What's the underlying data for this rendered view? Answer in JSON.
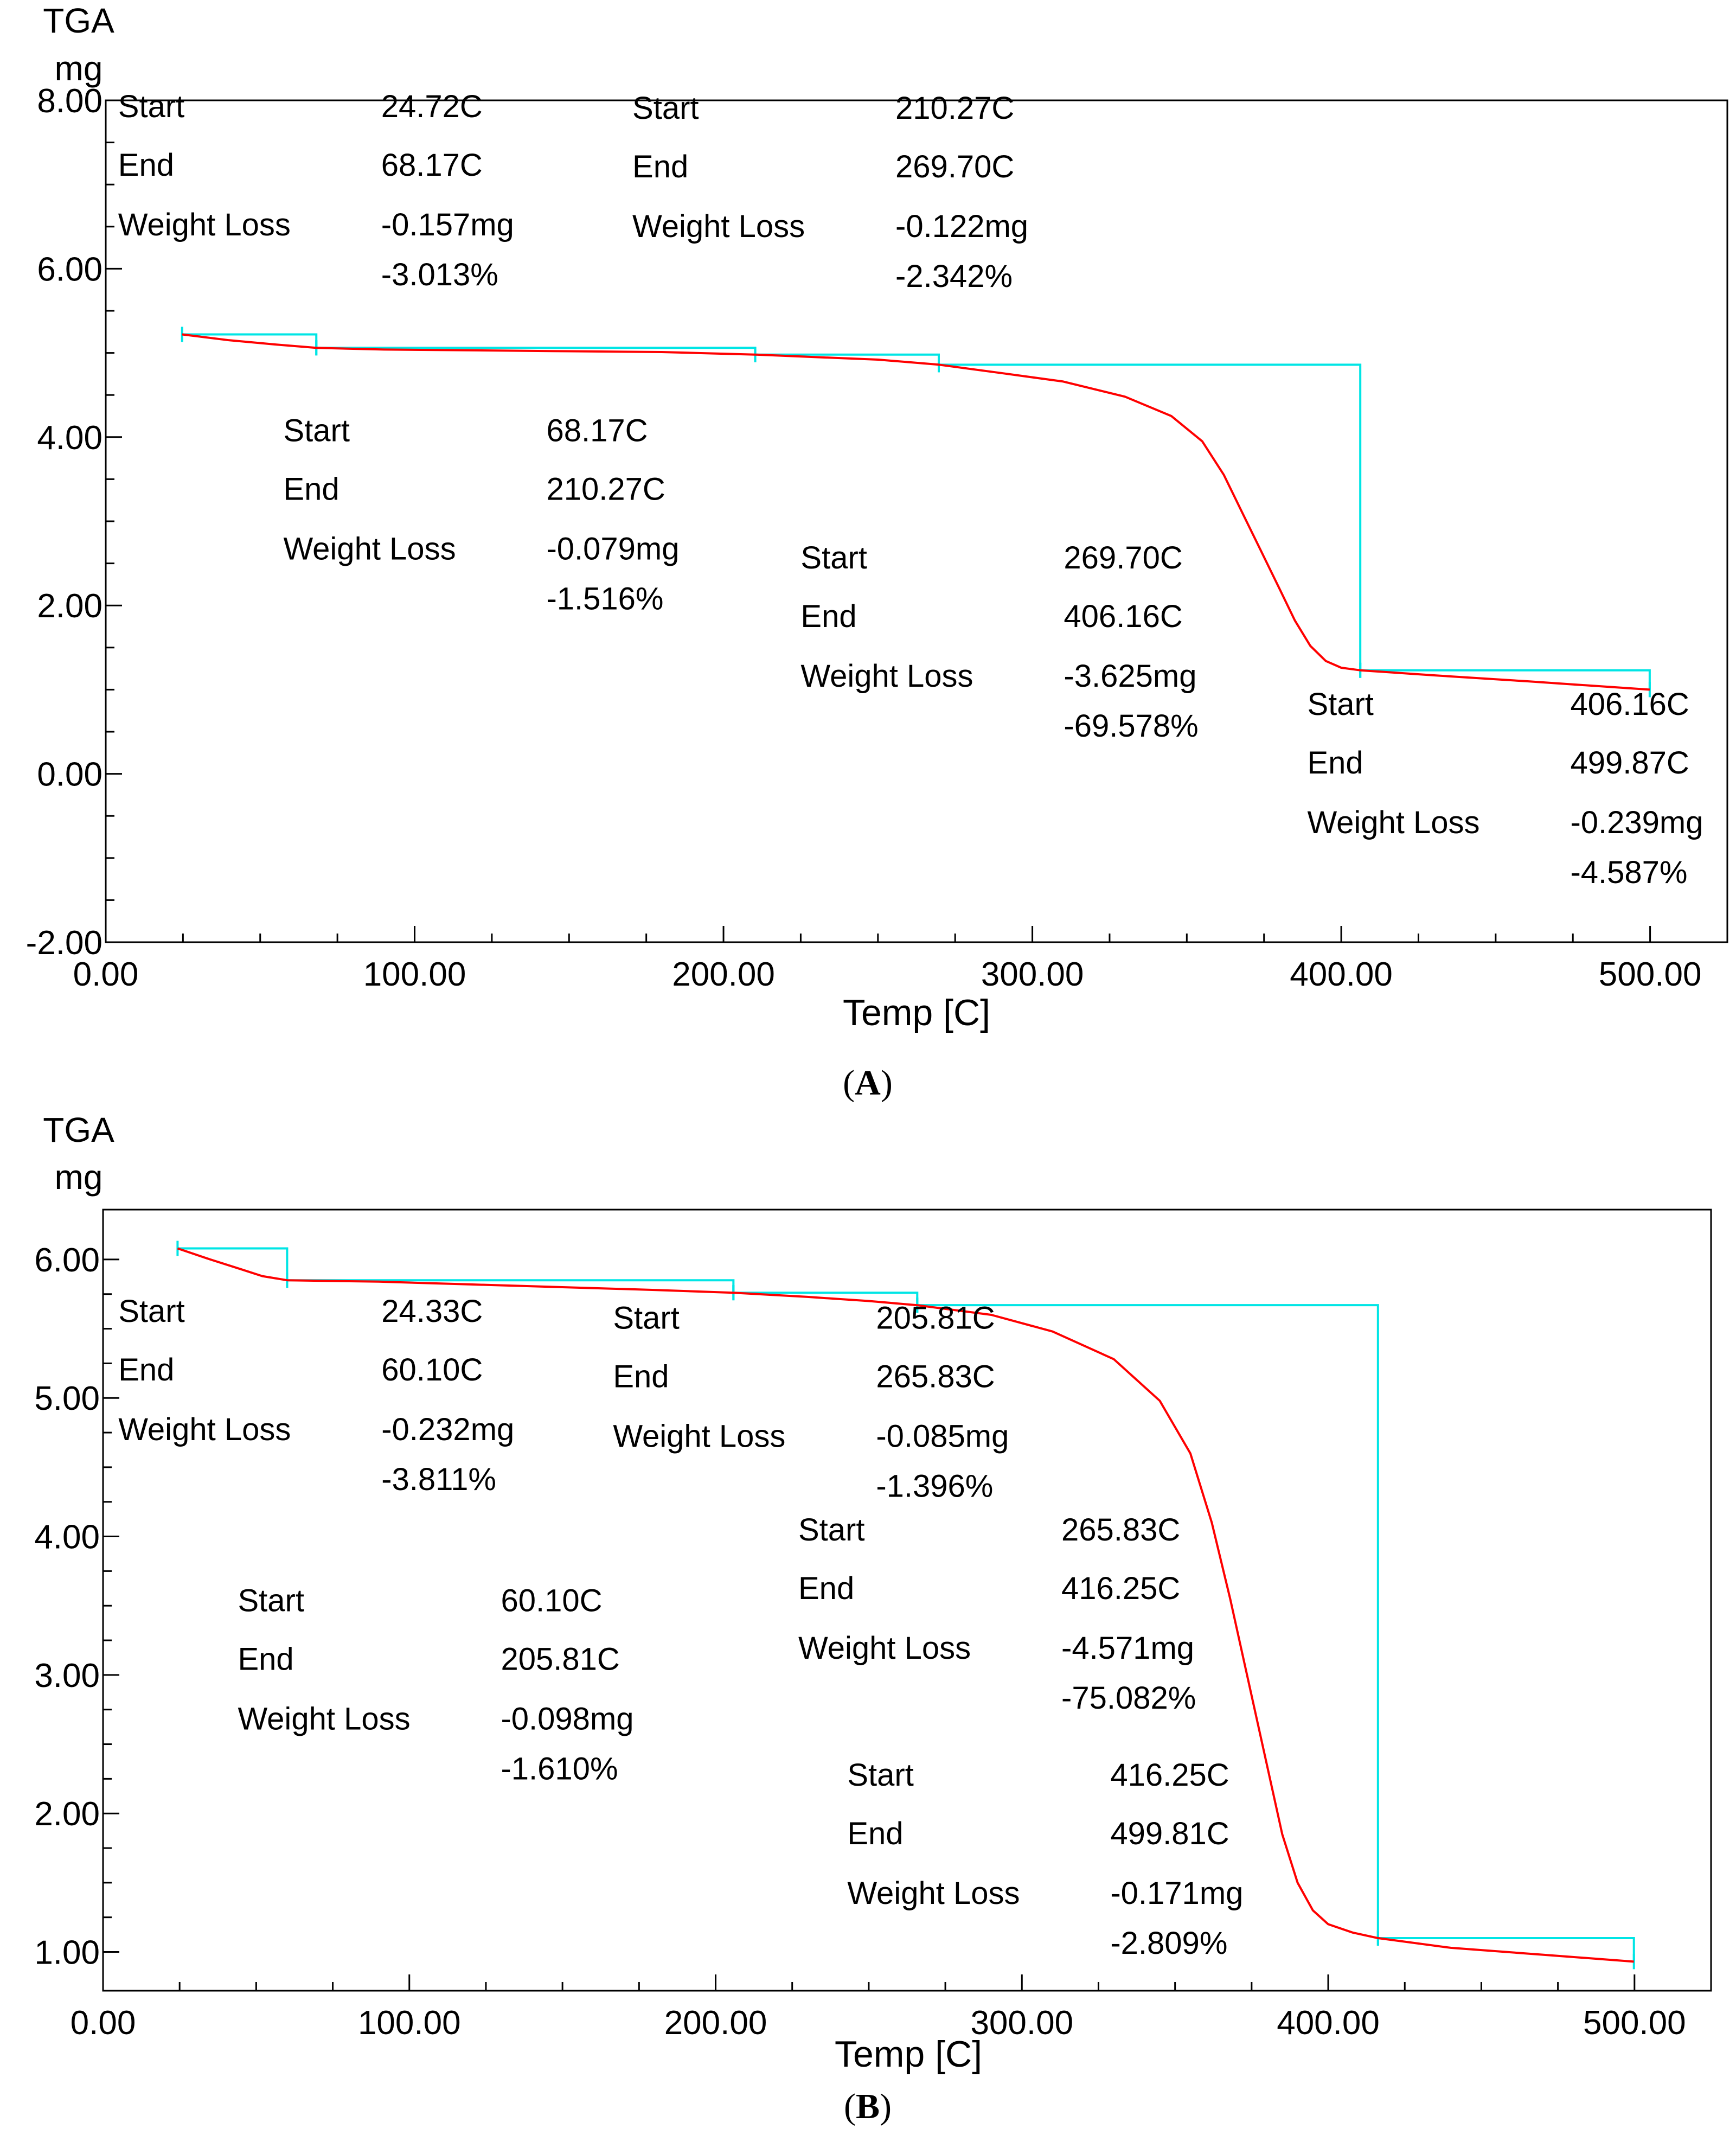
{
  "chart_data": [
    {
      "type": "line",
      "panel_label": "A",
      "ylabel_line1": "TGA",
      "ylabel_line2": "mg",
      "xlabel": "Temp  [C]",
      "xlim": [
        0,
        525
      ],
      "ylim": [
        -2,
        8
      ],
      "x_ticks": [
        0,
        100,
        200,
        300,
        400,
        500
      ],
      "x_tick_labels": [
        "0.00",
        "100.00",
        "200.00",
        "300.00",
        "400.00",
        "500.00"
      ],
      "y_ticks": [
        -2,
        0,
        2,
        4,
        6,
        8
      ],
      "y_tick_labels": [
        "-2.00",
        "0.00",
        "2.00",
        "4.00",
        "6.00",
        "8.00"
      ],
      "series": [
        {
          "name": "TGA",
          "color": "#ff0000",
          "x": [
            24.72,
            40,
            55,
            68.17,
            90,
            120,
            150,
            180,
            210.27,
            230,
            250,
            269.7,
            290,
            310,
            330,
            345,
            355,
            362,
            368,
            374,
            380,
            385,
            390,
            395,
            400,
            406.16,
            430,
            460,
            499.87
          ],
          "y": [
            5.22,
            5.15,
            5.1,
            5.06,
            5.04,
            5.03,
            5.02,
            5.01,
            4.98,
            4.95,
            4.92,
            4.86,
            4.76,
            4.66,
            4.48,
            4.25,
            3.95,
            3.55,
            3.1,
            2.65,
            2.2,
            1.82,
            1.52,
            1.34,
            1.26,
            1.23,
            1.17,
            1.1,
            1.0
          ]
        }
      ],
      "steps_color": "#00e5e5",
      "steps": [
        {
          "start": 24.72,
          "end": 68.17,
          "w_start": 5.22,
          "w_end": 5.06
        },
        {
          "start": 68.17,
          "end": 210.27,
          "w_start": 5.06,
          "w_end": 4.98
        },
        {
          "start": 210.27,
          "end": 269.7,
          "w_start": 4.98,
          "w_end": 4.86
        },
        {
          "start": 269.7,
          "end": 406.16,
          "w_start": 4.86,
          "w_end": 1.23
        },
        {
          "start": 406.16,
          "end": 499.87,
          "w_start": 1.23,
          "w_end": 1.0
        }
      ],
      "annotations": [
        {
          "start": "24.72C",
          "end": "68.17C",
          "loss_mg": "-0.157mg",
          "loss_pct": "-3.013%",
          "anchor": [
            4,
            7.8
          ]
        },
        {
          "start": "68.17C",
          "end": "210.27C",
          "loss_mg": "-0.079mg",
          "loss_pct": "-1.516%",
          "anchor": [
            57.5,
            3.95
          ]
        },
        {
          "start": "210.27C",
          "end": "269.70C",
          "loss_mg": "-0.122mg",
          "loss_pct": "-2.342%",
          "anchor": [
            170.5,
            7.78
          ]
        },
        {
          "start": "269.70C",
          "end": "406.16C",
          "loss_mg": "-3.625mg",
          "loss_pct": "-69.578%",
          "anchor": [
            225,
            2.44
          ]
        },
        {
          "start": "406.16C",
          "end": "499.87C",
          "loss_mg": "-0.239mg",
          "loss_pct": "-4.587%",
          "anchor": [
            389,
            0.7
          ]
        }
      ],
      "labels": {
        "start": "Start",
        "end": "End",
        "loss": "Weight Loss"
      }
    },
    {
      "type": "line",
      "panel_label": "B",
      "ylabel_line1": "TGA",
      "ylabel_line2": "mg",
      "xlabel": "Temp  [C]",
      "xlim": [
        0,
        525
      ],
      "ylim": [
        0.72,
        6.36
      ],
      "x_ticks": [
        0,
        100,
        200,
        300,
        400,
        500
      ],
      "x_tick_labels": [
        "0.00",
        "100.00",
        "200.00",
        "300.00",
        "400.00",
        "500.00"
      ],
      "y_ticks": [
        1,
        2,
        3,
        4,
        5,
        6
      ],
      "y_tick_labels": [
        "1.00",
        "2.00",
        "3.00",
        "4.00",
        "5.00",
        "6.00"
      ],
      "series": [
        {
          "name": "TGA",
          "color": "#ff0000",
          "x": [
            24.33,
            35,
            45,
            52,
            60.1,
            90,
            120,
            150,
            180,
            205.81,
            230,
            250,
            265.83,
            290,
            310,
            330,
            345,
            355,
            362,
            368,
            374,
            380,
            385,
            390,
            395,
            400,
            408,
            416.25,
            440,
            470,
            499.81
          ],
          "y": [
            6.08,
            6.0,
            5.93,
            5.88,
            5.85,
            5.84,
            5.82,
            5.8,
            5.78,
            5.76,
            5.73,
            5.7,
            5.67,
            5.6,
            5.48,
            5.28,
            4.98,
            4.6,
            4.1,
            3.55,
            2.95,
            2.35,
            1.85,
            1.5,
            1.3,
            1.2,
            1.14,
            1.1,
            1.03,
            0.98,
            0.93
          ]
        }
      ],
      "steps_color": "#00e5e5",
      "steps": [
        {
          "start": 24.33,
          "end": 60.1,
          "w_start": 6.08,
          "w_end": 5.85
        },
        {
          "start": 60.1,
          "end": 205.81,
          "w_start": 5.85,
          "w_end": 5.76
        },
        {
          "start": 205.81,
          "end": 265.83,
          "w_start": 5.76,
          "w_end": 5.67
        },
        {
          "start": 265.83,
          "end": 416.25,
          "w_start": 5.67,
          "w_end": 1.1
        },
        {
          "start": 416.25,
          "end": 499.81,
          "w_start": 1.1,
          "w_end": 0.93
        }
      ],
      "annotations": [
        {
          "start": "24.33C",
          "end": "60.10C",
          "loss_mg": "-0.232mg",
          "loss_pct": "-3.811%",
          "anchor": [
            5,
            5.55
          ]
        },
        {
          "start": "60.10C",
          "end": "205.81C",
          "loss_mg": "-0.098mg",
          "loss_pct": "-1.610%",
          "anchor": [
            44,
            3.46
          ]
        },
        {
          "start": "205.81C",
          "end": "265.83C",
          "loss_mg": "-0.085mg",
          "loss_pct": "-1.396%",
          "anchor": [
            166.5,
            5.5
          ]
        },
        {
          "start": "265.83C",
          "end": "416.25C",
          "loss_mg": "-4.571mg",
          "loss_pct": "-75.082%",
          "anchor": [
            227,
            3.97
          ]
        },
        {
          "start": "416.25C",
          "end": "499.81C",
          "loss_mg": "-0.171mg",
          "loss_pct": "-2.809%",
          "anchor": [
            243,
            2.2
          ]
        }
      ],
      "labels": {
        "start": "Start",
        "end": "End",
        "loss": "Weight Loss"
      }
    }
  ]
}
